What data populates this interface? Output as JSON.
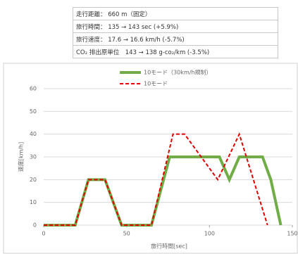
{
  "table": {
    "rows": [
      "走行距離： 660 m（固定）",
      "旅行時間： 135 → 143 sec (+5.9%)",
      "旅行速度： 17.6 → 16.6 km/h (-5.7%)",
      "CO₂ 排出原単位　143 → 138 g-co₂/km (-3.5%)"
    ]
  },
  "chart_data": {
    "type": "line",
    "xlabel": "旅行時間[sec]",
    "ylabel": "速度[km/h]",
    "xlim": [
      0,
      150
    ],
    "xticks": [
      0,
      50,
      100,
      150
    ],
    "ylim": [
      0,
      60
    ],
    "yticks": [
      0,
      10,
      20,
      30,
      40,
      50,
      60
    ],
    "grid": true,
    "series": [
      {
        "name": "10モード（30km/h規制）",
        "color": "#70ad47",
        "dash": false,
        "x": [
          0,
          19,
          27,
          37,
          47,
          65,
          76,
          106,
          112,
          118,
          132,
          137,
          143
        ],
        "values": [
          0,
          0,
          20,
          20,
          0,
          0,
          30,
          30,
          20,
          30,
          30,
          20,
          0
        ]
      },
      {
        "name": "10モード",
        "color": "#e00000",
        "dash": true,
        "x": [
          0,
          19,
          27,
          37,
          47,
          65,
          78,
          85,
          105,
          118,
          135
        ],
        "values": [
          0,
          0,
          20,
          20,
          0,
          0,
          40,
          40,
          20,
          40,
          0
        ]
      }
    ]
  }
}
